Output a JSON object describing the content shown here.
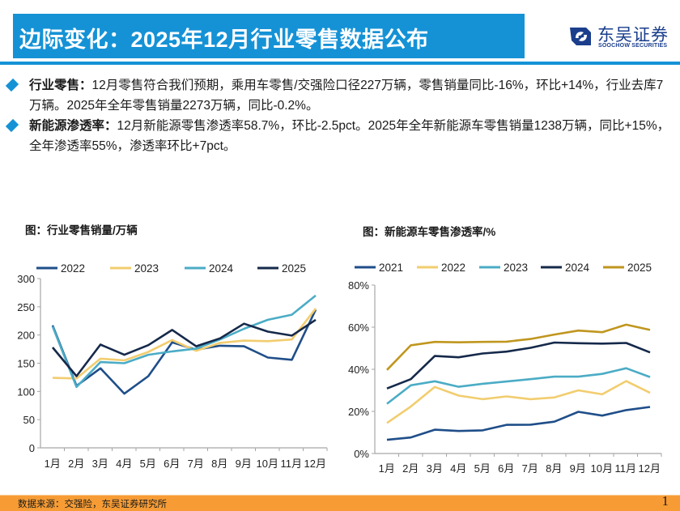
{
  "header": {
    "title": "边际变化：2025年12月行业零售数据公布",
    "logo_cn": "东吴证券",
    "logo_en": "SOOCHOW SECURITIES",
    "accent_color": "#1592d6"
  },
  "bullets": [
    {
      "key": "行业零售：",
      "text": "12月零售符合我们预期，乘用车零售/交强险口径227万辆，零售销量同比-16%，环比+14%，行业去库7万辆。2025年全年零售销量2273万辆，同比-0.2%。"
    },
    {
      "key": "新能源渗透率：",
      "text": "12月新能源零售渗透率58.7%，环比-2.5pct。2025年全年新能源车零售销量1238万辆，同比+15%，全年渗透率55%，渗透率环比+7pct。"
    }
  ],
  "footer": {
    "source": "数据来源：交强险，东吴证券研究所",
    "page": "1",
    "color": "#f79c34"
  },
  "chart_data": [
    {
      "type": "line",
      "title": "图：行业零售销量/万辆",
      "xlabel": "",
      "ylabel": "",
      "categories": [
        "1月",
        "2月",
        "3月",
        "4月",
        "5月",
        "6月",
        "7月",
        "8月",
        "9月",
        "10月",
        "11月",
        "12月"
      ],
      "ylim": [
        0,
        300
      ],
      "yticks": [
        0,
        50,
        100,
        150,
        200,
        250,
        300
      ],
      "ytick_labels": [
        "0",
        "50",
        "100",
        "150",
        "200",
        "250",
        "300"
      ],
      "grid": false,
      "legend": "top",
      "series": [
        {
          "name": "2022",
          "color": "#1f4e89",
          "values": [
            217,
            110,
            141,
            96,
            127,
            187,
            174,
            181,
            180,
            160,
            156,
            245
          ]
        },
        {
          "name": "2023",
          "color": "#f2cd6f",
          "values": [
            124,
            123,
            158,
            155,
            170,
            191,
            172,
            186,
            190,
            189,
            192,
            247
          ]
        },
        {
          "name": "2024",
          "color": "#4bacc6",
          "values": [
            215,
            108,
            152,
            150,
            165,
            171,
            176,
            192,
            211,
            227,
            236,
            270
          ]
        },
        {
          "name": "2025",
          "color": "#15294a",
          "values": [
            178,
            127,
            183,
            165,
            182,
            209,
            180,
            194,
            220,
            206,
            199,
            227
          ]
        }
      ]
    },
    {
      "type": "line",
      "title": "图：新能源车零售渗透率/%",
      "xlabel": "",
      "ylabel": "",
      "categories": [
        "1月",
        "2月",
        "3月",
        "4月",
        "5月",
        "6月",
        "7月",
        "8月",
        "9月",
        "10月",
        "11月",
        "12月"
      ],
      "ylim": [
        0,
        80
      ],
      "yticks": [
        0,
        20,
        40,
        60,
        80
      ],
      "ytick_labels": [
        "0%",
        "20%",
        "40%",
        "60%",
        "80%"
      ],
      "grid": false,
      "legend": "top",
      "series": [
        {
          "name": "2021",
          "color": "#1f4e89",
          "values": [
            6.5,
            7.6,
            11.3,
            10.7,
            11.0,
            13.6,
            13.7,
            15.1,
            19.8,
            18.0,
            20.6,
            22.1
          ]
        },
        {
          "name": "2022",
          "color": "#f2cd6f",
          "values": [
            14.5,
            22.3,
            31.6,
            27.5,
            25.8,
            27.1,
            25.8,
            26.6,
            30.0,
            28.1,
            34.4,
            28.8
          ]
        },
        {
          "name": "2023",
          "color": "#4bacc6",
          "values": [
            23.6,
            32.4,
            34.3,
            31.7,
            33.1,
            34.2,
            35.3,
            36.5,
            36.5,
            37.8,
            40.5,
            36.3
          ]
        },
        {
          "name": "2024",
          "color": "#15294a",
          "values": [
            30.9,
            35.3,
            46.3,
            45.7,
            47.5,
            48.4,
            50.2,
            52.7,
            52.4,
            52.2,
            52.5,
            48.0
          ]
        },
        {
          "name": "2025",
          "color": "#c0961e",
          "values": [
            39.7,
            51.4,
            53.0,
            52.8,
            53.0,
            53.1,
            54.4,
            56.5,
            58.4,
            57.6,
            61.2,
            58.7
          ]
        }
      ]
    }
  ]
}
